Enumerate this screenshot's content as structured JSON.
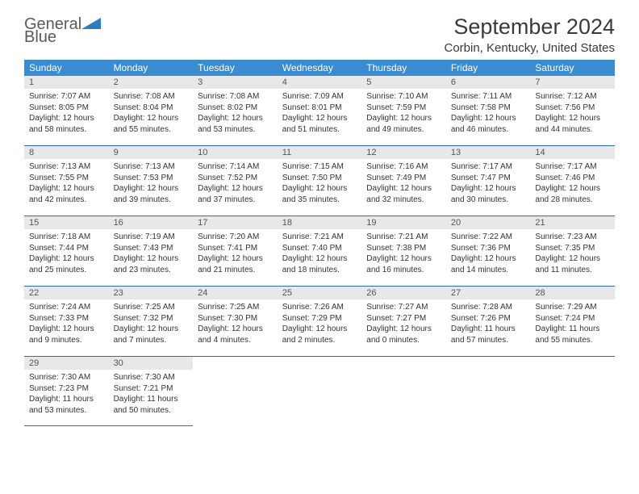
{
  "logo": {
    "text_gray": "General",
    "text_blue": "Blue",
    "icon_color": "#2e7bc0"
  },
  "title": "September 2024",
  "location": "Corbin, Kentucky, United States",
  "header_bg": "#3b8bd0",
  "daynum_bg": "#e8e8e8",
  "border_color": "#2e6fa8",
  "day_headers": [
    "Sunday",
    "Monday",
    "Tuesday",
    "Wednesday",
    "Thursday",
    "Friday",
    "Saturday"
  ],
  "weeks": [
    [
      {
        "num": "1",
        "sunrise": "Sunrise: 7:07 AM",
        "sunset": "Sunset: 8:05 PM",
        "daylight": "Daylight: 12 hours and 58 minutes."
      },
      {
        "num": "2",
        "sunrise": "Sunrise: 7:08 AM",
        "sunset": "Sunset: 8:04 PM",
        "daylight": "Daylight: 12 hours and 55 minutes."
      },
      {
        "num": "3",
        "sunrise": "Sunrise: 7:08 AM",
        "sunset": "Sunset: 8:02 PM",
        "daylight": "Daylight: 12 hours and 53 minutes."
      },
      {
        "num": "4",
        "sunrise": "Sunrise: 7:09 AM",
        "sunset": "Sunset: 8:01 PM",
        "daylight": "Daylight: 12 hours and 51 minutes."
      },
      {
        "num": "5",
        "sunrise": "Sunrise: 7:10 AM",
        "sunset": "Sunset: 7:59 PM",
        "daylight": "Daylight: 12 hours and 49 minutes."
      },
      {
        "num": "6",
        "sunrise": "Sunrise: 7:11 AM",
        "sunset": "Sunset: 7:58 PM",
        "daylight": "Daylight: 12 hours and 46 minutes."
      },
      {
        "num": "7",
        "sunrise": "Sunrise: 7:12 AM",
        "sunset": "Sunset: 7:56 PM",
        "daylight": "Daylight: 12 hours and 44 minutes."
      }
    ],
    [
      {
        "num": "8",
        "sunrise": "Sunrise: 7:13 AM",
        "sunset": "Sunset: 7:55 PM",
        "daylight": "Daylight: 12 hours and 42 minutes."
      },
      {
        "num": "9",
        "sunrise": "Sunrise: 7:13 AM",
        "sunset": "Sunset: 7:53 PM",
        "daylight": "Daylight: 12 hours and 39 minutes."
      },
      {
        "num": "10",
        "sunrise": "Sunrise: 7:14 AM",
        "sunset": "Sunset: 7:52 PM",
        "daylight": "Daylight: 12 hours and 37 minutes."
      },
      {
        "num": "11",
        "sunrise": "Sunrise: 7:15 AM",
        "sunset": "Sunset: 7:50 PM",
        "daylight": "Daylight: 12 hours and 35 minutes."
      },
      {
        "num": "12",
        "sunrise": "Sunrise: 7:16 AM",
        "sunset": "Sunset: 7:49 PM",
        "daylight": "Daylight: 12 hours and 32 minutes."
      },
      {
        "num": "13",
        "sunrise": "Sunrise: 7:17 AM",
        "sunset": "Sunset: 7:47 PM",
        "daylight": "Daylight: 12 hours and 30 minutes."
      },
      {
        "num": "14",
        "sunrise": "Sunrise: 7:17 AM",
        "sunset": "Sunset: 7:46 PM",
        "daylight": "Daylight: 12 hours and 28 minutes."
      }
    ],
    [
      {
        "num": "15",
        "sunrise": "Sunrise: 7:18 AM",
        "sunset": "Sunset: 7:44 PM",
        "daylight": "Daylight: 12 hours and 25 minutes."
      },
      {
        "num": "16",
        "sunrise": "Sunrise: 7:19 AM",
        "sunset": "Sunset: 7:43 PM",
        "daylight": "Daylight: 12 hours and 23 minutes."
      },
      {
        "num": "17",
        "sunrise": "Sunrise: 7:20 AM",
        "sunset": "Sunset: 7:41 PM",
        "daylight": "Daylight: 12 hours and 21 minutes."
      },
      {
        "num": "18",
        "sunrise": "Sunrise: 7:21 AM",
        "sunset": "Sunset: 7:40 PM",
        "daylight": "Daylight: 12 hours and 18 minutes."
      },
      {
        "num": "19",
        "sunrise": "Sunrise: 7:21 AM",
        "sunset": "Sunset: 7:38 PM",
        "daylight": "Daylight: 12 hours and 16 minutes."
      },
      {
        "num": "20",
        "sunrise": "Sunrise: 7:22 AM",
        "sunset": "Sunset: 7:36 PM",
        "daylight": "Daylight: 12 hours and 14 minutes."
      },
      {
        "num": "21",
        "sunrise": "Sunrise: 7:23 AM",
        "sunset": "Sunset: 7:35 PM",
        "daylight": "Daylight: 12 hours and 11 minutes."
      }
    ],
    [
      {
        "num": "22",
        "sunrise": "Sunrise: 7:24 AM",
        "sunset": "Sunset: 7:33 PM",
        "daylight": "Daylight: 12 hours and 9 minutes."
      },
      {
        "num": "23",
        "sunrise": "Sunrise: 7:25 AM",
        "sunset": "Sunset: 7:32 PM",
        "daylight": "Daylight: 12 hours and 7 minutes."
      },
      {
        "num": "24",
        "sunrise": "Sunrise: 7:25 AM",
        "sunset": "Sunset: 7:30 PM",
        "daylight": "Daylight: 12 hours and 4 minutes."
      },
      {
        "num": "25",
        "sunrise": "Sunrise: 7:26 AM",
        "sunset": "Sunset: 7:29 PM",
        "daylight": "Daylight: 12 hours and 2 minutes."
      },
      {
        "num": "26",
        "sunrise": "Sunrise: 7:27 AM",
        "sunset": "Sunset: 7:27 PM",
        "daylight": "Daylight: 12 hours and 0 minutes."
      },
      {
        "num": "27",
        "sunrise": "Sunrise: 7:28 AM",
        "sunset": "Sunset: 7:26 PM",
        "daylight": "Daylight: 11 hours and 57 minutes."
      },
      {
        "num": "28",
        "sunrise": "Sunrise: 7:29 AM",
        "sunset": "Sunset: 7:24 PM",
        "daylight": "Daylight: 11 hours and 55 minutes."
      }
    ],
    [
      {
        "num": "29",
        "sunrise": "Sunrise: 7:30 AM",
        "sunset": "Sunset: 7:23 PM",
        "daylight": "Daylight: 11 hours and 53 minutes."
      },
      {
        "num": "30",
        "sunrise": "Sunrise: 7:30 AM",
        "sunset": "Sunset: 7:21 PM",
        "daylight": "Daylight: 11 hours and 50 minutes."
      },
      null,
      null,
      null,
      null,
      null
    ]
  ]
}
